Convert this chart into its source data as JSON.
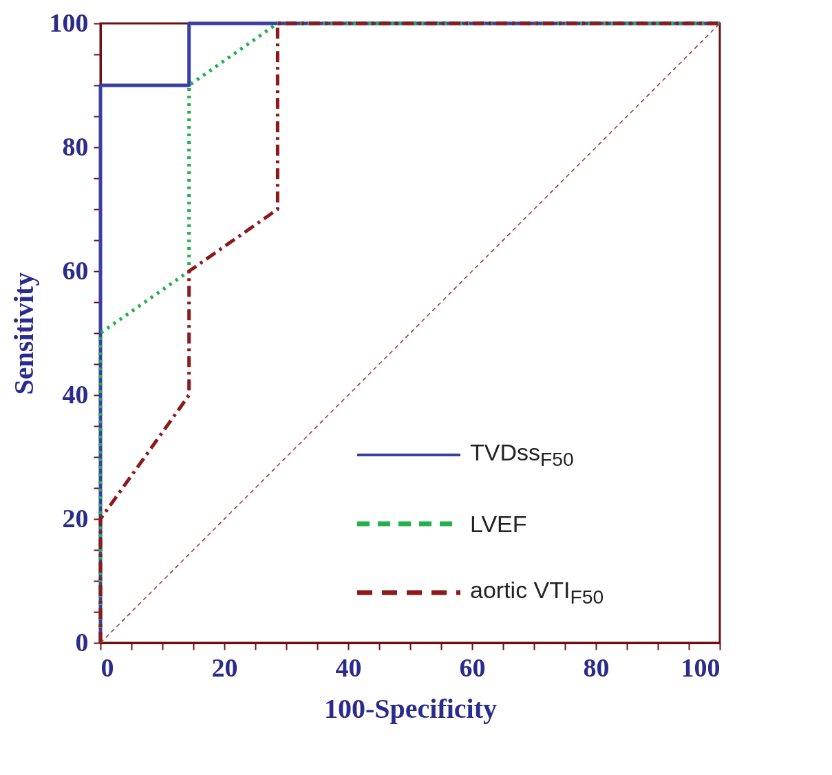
{
  "chart_data": {
    "type": "line",
    "xlabel": "100-Specificity",
    "ylabel": "Sensitivity",
    "xlim": [
      0,
      100
    ],
    "ylim": [
      0,
      100
    ],
    "xticks": [
      0,
      {
        "value": 5,
        "label": null
      },
      {
        "value": 10,
        "label": null
      },
      {
        "value": 15,
        "label": null
      },
      20,
      {
        "value": 25,
        "label": null
      },
      {
        "value": 30,
        "label": null
      },
      {
        "value": 35,
        "label": null
      },
      40,
      {
        "value": 45,
        "label": null
      },
      {
        "value": 50,
        "label": null
      },
      {
        "value": 55,
        "label": null
      },
      60,
      {
        "value": 65,
        "label": null
      },
      {
        "value": 70,
        "label": null
      },
      {
        "value": 75,
        "label": null
      },
      80,
      {
        "value": 85,
        "label": null
      },
      {
        "value": 90,
        "label": null
      },
      {
        "value": 95,
        "label": null
      },
      100
    ],
    "yticks": [
      0,
      {
        "value": 5,
        "label": null
      },
      {
        "value": 10,
        "label": null
      },
      {
        "value": 15,
        "label": null
      },
      20,
      {
        "value": 25,
        "label": null
      },
      {
        "value": 30,
        "label": null
      },
      {
        "value": 35,
        "label": null
      },
      40,
      {
        "value": 45,
        "label": null
      },
      {
        "value": 50,
        "label": null
      },
      {
        "value": 55,
        "label": null
      },
      60,
      {
        "value": 65,
        "label": null
      },
      {
        "value": 70,
        "label": null
      },
      {
        "value": 75,
        "label": null
      },
      80,
      {
        "value": 85,
        "label": null
      },
      {
        "value": 90,
        "label": null
      },
      {
        "value": 95,
        "label": null
      },
      100
    ],
    "grid": false,
    "legend": "bottom right",
    "marker": "none",
    "series": [
      {
        "name": "TVDss$_{F50}$",
        "color": "#3b3fa5",
        "line_style": "solid",
        "x": [
          0,
          0,
          14.3,
          14.3,
          100
        ],
        "values": [
          0,
          90,
          90,
          100,
          100
        ]
      },
      {
        "name": "LVEF",
        "color": "#22b14c",
        "line_style": "dotted",
        "x": [
          0,
          0,
          14.3,
          14.3,
          28.6,
          100
        ],
        "values": [
          0,
          50,
          60,
          90,
          100,
          100
        ]
      },
      {
        "name": "aortic VTI$_{F50}$",
        "color": "#8b1a1a",
        "line_style": "dashed",
        "x": [
          0,
          0,
          14.3,
          14.3,
          28.6,
          28.6,
          100
        ],
        "values": [
          0,
          20,
          40,
          60,
          70,
          100,
          100
        ]
      },
      {
        "color": "#a03030",
        "line_style": "dashed",
        "x": [
          0,
          100
        ],
        "values": [
          0,
          100
        ]
      }
    ]
  }
}
